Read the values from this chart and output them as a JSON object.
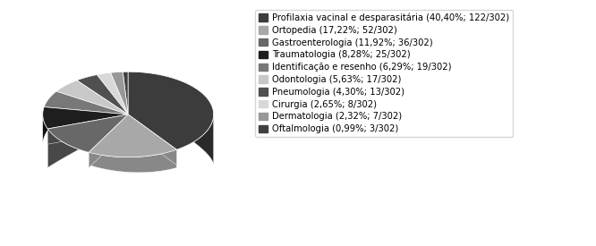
{
  "labels": [
    "Profilaxia vacinal e desparasitária (40,40%; 122/302)",
    "Ortopedia (17,22%; 52/302)",
    "Gastroenterologia (11,92%; 36/302)",
    "Traumatologia (8,28%; 25/302)",
    "Identificação e resenho (6,29%; 19/302)",
    "Odontologia (5,63%; 17/302)",
    "Pneumologia (4,30%; 13/302)",
    "Cirurgia (2,65%; 8/302)",
    "Dermatologia (2,32%; 7/302)",
    "Oftalmologia (0,99%; 3/302)"
  ],
  "values": [
    122,
    52,
    36,
    25,
    19,
    17,
    13,
    8,
    7,
    3
  ],
  "colors": [
    "#3c3c3c",
    "#a8a8a8",
    "#686868",
    "#1e1e1e",
    "#787878",
    "#c8c8c8",
    "#505050",
    "#d8d8d8",
    "#989898",
    "#404040"
  ],
  "dark_colors": [
    "#2a2a2a",
    "#888888",
    "#484848",
    "#101010",
    "#585858",
    "#a8a8a8",
    "#303030",
    "#b8b8b8",
    "#787878",
    "#282828"
  ],
  "figsize": [
    6.66,
    2.75
  ],
  "dpi": 100,
  "legend_fontsize": 7.2,
  "bg_color": "#ffffff",
  "startangle": 90,
  "depth": 0.12,
  "yscale": 0.5
}
